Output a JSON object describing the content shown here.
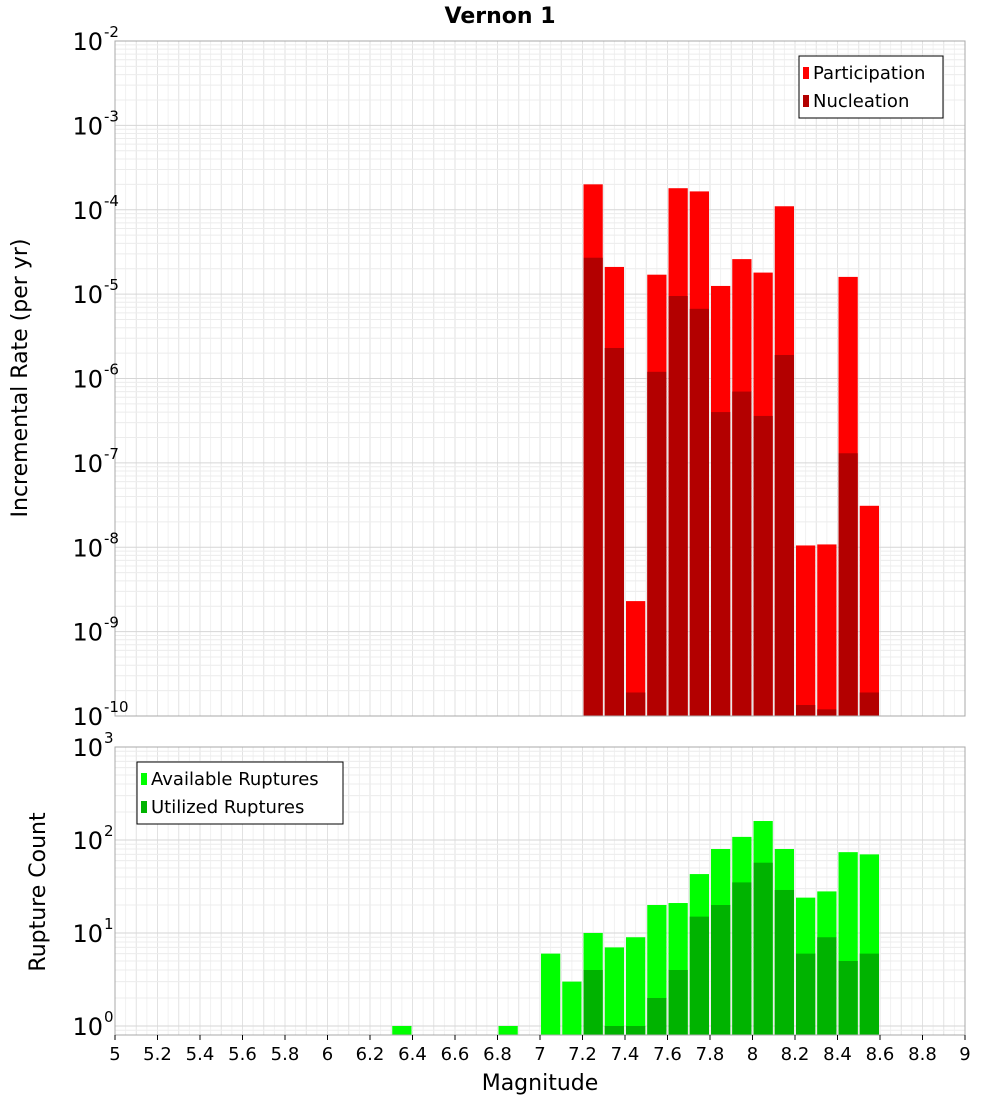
{
  "chart_data": [
    {
      "type": "bar",
      "title": "Vernon 1",
      "xlabel": "",
      "ylabel": "Incremental Rate (per yr)",
      "yscale": "log",
      "ylim": [
        1e-10,
        0.01
      ],
      "xlim": [
        5,
        9
      ],
      "grid": true,
      "legend_position": "top-right",
      "bar_width": 0.1,
      "y_tick_labels": [
        {
          "base": "10",
          "exp": "-10"
        },
        {
          "base": "10",
          "exp": "-9"
        },
        {
          "base": "10",
          "exp": "-8"
        },
        {
          "base": "10",
          "exp": "-7"
        },
        {
          "base": "10",
          "exp": "-6"
        },
        {
          "base": "10",
          "exp": "-5"
        },
        {
          "base": "10",
          "exp": "-4"
        },
        {
          "base": "10",
          "exp": "-3"
        },
        {
          "base": "10",
          "exp": "-2"
        }
      ],
      "x": [
        7.25,
        7.35,
        7.45,
        7.55,
        7.65,
        7.75,
        7.85,
        7.95,
        8.05,
        8.15,
        8.25,
        8.35,
        8.45,
        8.55
      ],
      "series": [
        {
          "name": "Participation",
          "color": "#ff0000",
          "values": [
            0.0002,
            2.1e-05,
            2.3e-09,
            1.7e-05,
            0.00018,
            0.000165,
            1.25e-05,
            2.6e-05,
            1.8e-05,
            0.00011,
            1.05e-08,
            1.08e-08,
            1.6e-05,
            3.1e-08
          ]
        },
        {
          "name": "Nucleation",
          "color": "#b30000",
          "values": [
            2.7e-05,
            2.3e-06,
            1.9e-10,
            1.2e-06,
            9.5e-06,
            6.7e-06,
            4e-07,
            7e-07,
            3.6e-07,
            1.9e-06,
            1.35e-10,
            1.2e-10,
            1.3e-07,
            1.9e-10
          ]
        }
      ]
    },
    {
      "type": "bar",
      "title": "",
      "xlabel": "Magnitude",
      "ylabel": "Rupture Count",
      "yscale": "log",
      "ylim": [
        0.8,
        1000
      ],
      "xlim": [
        5,
        9
      ],
      "grid": true,
      "legend_position": "top-left",
      "bar_width": 0.1,
      "x_ticks": [
        5,
        5.2,
        5.4,
        5.6,
        5.8,
        6,
        6.2,
        6.4,
        6.6,
        6.8,
        7,
        7.2,
        7.4,
        7.6,
        7.8,
        8,
        8.2,
        8.4,
        8.6,
        8.8,
        9
      ],
      "x_tick_labels": [
        "5",
        "5.2",
        "5.4",
        "5.6",
        "5.8",
        "6",
        "6.2",
        "6.4",
        "6.6",
        "6.8",
        "7",
        "7.2",
        "7.4",
        "7.6",
        "7.8",
        "8",
        "8.2",
        "8.4",
        "8.6",
        "8.8",
        "9"
      ],
      "y_tick_labels": [
        {
          "base": "10",
          "exp": "0"
        },
        {
          "base": "10",
          "exp": "1"
        },
        {
          "base": "10",
          "exp": "2"
        },
        {
          "base": "10",
          "exp": "3"
        }
      ],
      "x": [
        6.35,
        6.85,
        7.05,
        7.15,
        7.25,
        7.35,
        7.45,
        7.55,
        7.65,
        7.75,
        7.85,
        7.95,
        8.05,
        8.15,
        8.25,
        8.35,
        8.45,
        8.55
      ],
      "series": [
        {
          "name": "Available Ruptures",
          "color": "#00ff00",
          "values": [
            1,
            1,
            6,
            3,
            10,
            7,
            9,
            20,
            21,
            43,
            80,
            108,
            160,
            80,
            24,
            28,
            74,
            70
          ]
        },
        {
          "name": "Utilized Ruptures",
          "color": "#00b300",
          "values": [
            0,
            0,
            0,
            0,
            4,
            1,
            1,
            2,
            4,
            15,
            20,
            35,
            57,
            29,
            6,
            9,
            5,
            6
          ]
        }
      ]
    }
  ]
}
